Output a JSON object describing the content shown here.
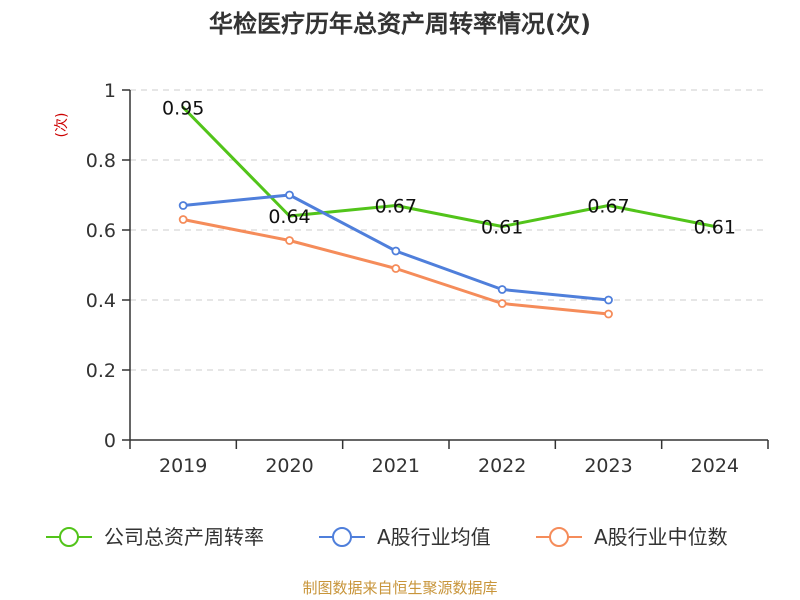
{
  "chart_data": {
    "type": "line",
    "title": "华检医疗历年总资产周转率情况(次)",
    "xlabel": "",
    "ylabel": "(次)",
    "categories": [
      "2019",
      "2020",
      "2021",
      "2022",
      "2023",
      "2024"
    ],
    "ylim": [
      0,
      1
    ],
    "yticks": [
      "0",
      "0.2",
      "0.4",
      "0.6",
      "0.8",
      "1"
    ],
    "grid": true,
    "legend_position": "bottom",
    "series": [
      {
        "name": "公司总资产周转率",
        "color": "#52c41a",
        "values": [
          0.95,
          0.64,
          0.67,
          0.61,
          0.67,
          0.61
        ],
        "labels": [
          "0.95",
          "0.64",
          "0.67",
          "0.61",
          "0.67",
          "0.61"
        ],
        "show_labels": true,
        "show_markers": false
      },
      {
        "name": "A股行业均值",
        "color": "#4f7fdb",
        "values": [
          0.67,
          0.7,
          0.54,
          0.43,
          0.4,
          null
        ],
        "show_labels": false,
        "show_markers": true
      },
      {
        "name": "A股行业中位数",
        "color": "#f58c5a",
        "values": [
          0.63,
          0.57,
          0.49,
          0.39,
          0.36,
          null
        ],
        "show_labels": false,
        "show_markers": true
      }
    ]
  },
  "footer": {
    "source": "制图数据来自恒生聚源数据库"
  }
}
